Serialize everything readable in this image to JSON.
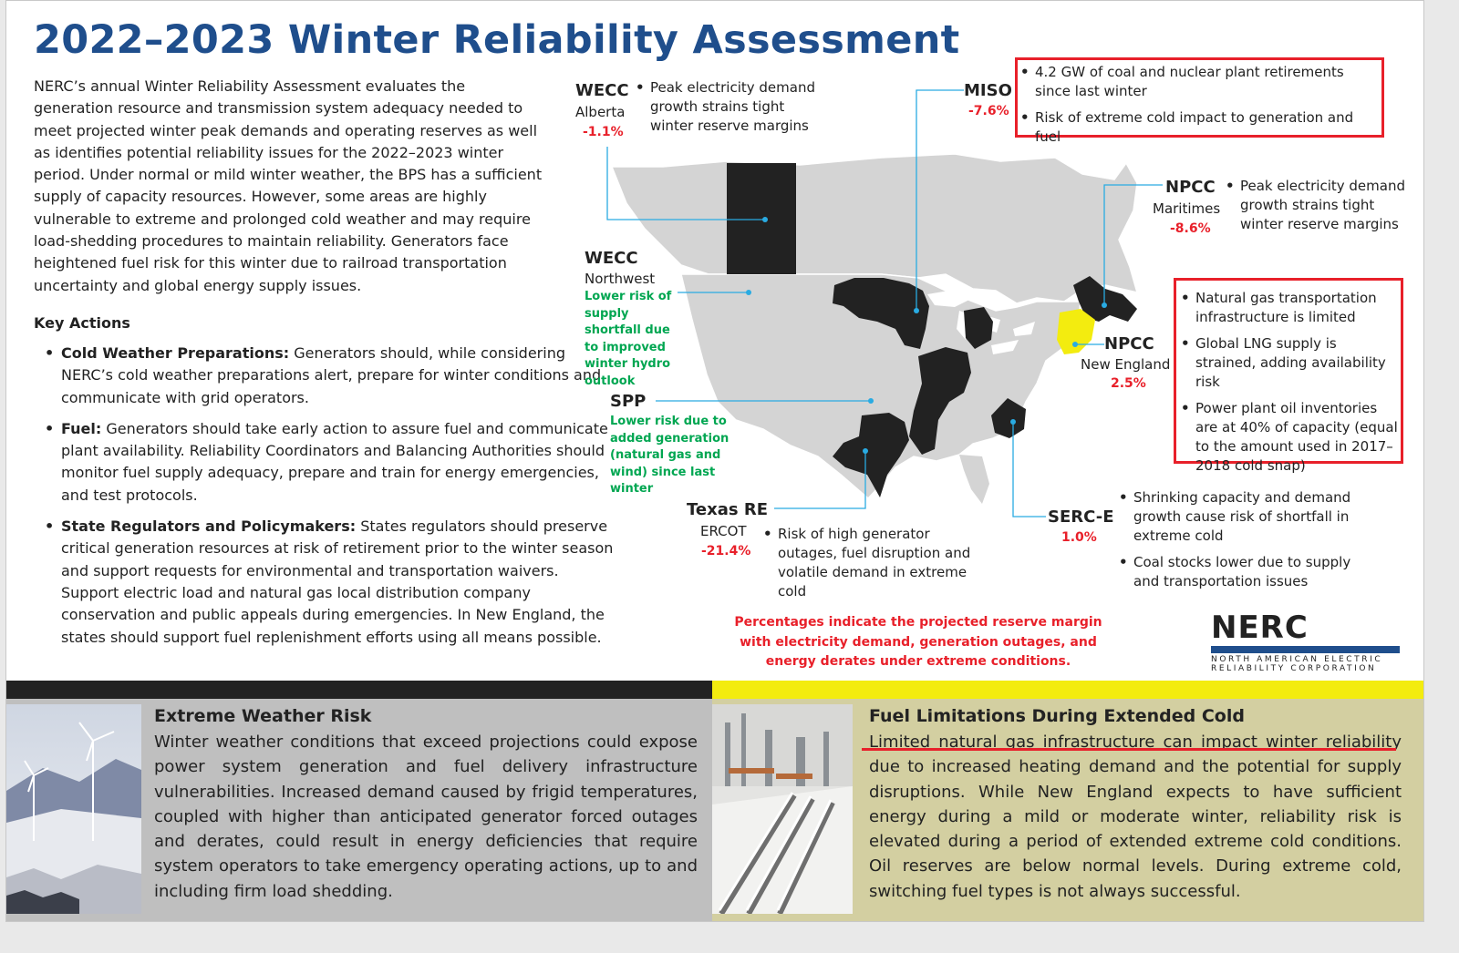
{
  "title": "2022–2023 Winter Reliability Assessment",
  "intro": "NERC’s annual Winter Reliability Assessment evaluates the generation resource and transmission system adequacy needed to meet projected winter peak demands and operating reserves as well as identifies potential reliability issues for the 2022–2023 winter period. Under normal or mild winter weather, the BPS has a sufficient supply of capacity resources. However, some areas are highly vulnerable to extreme and prolonged cold weather and may require load-shedding procedures to maintain reliability. Generators face heightened fuel risk for this winter due to railroad transportation uncertainty and global energy supply issues.",
  "key_actions": {
    "title": "Key Actions",
    "items": [
      {
        "heading": "Cold Weather Preparations:",
        "text": " Generators should, while considering NERC’s cold weather preparations alert, prepare for winter conditions and communicate with grid operators."
      },
      {
        "heading": "Fuel:",
        "text": " Generators should take early action to assure fuel and communicate plant availability. Reliability Coordinators and Balancing Authorities should monitor fuel supply adequacy, prepare and train for energy emergencies, and test protocols."
      },
      {
        "heading": "State Regulators and Policymakers:",
        "text": " States regulators should preserve critical generation resources at risk of retirement prior to the winter season and support requests for environmental and transportation waivers. Support electric load and natural gas local distribution company conservation and public appeals during emergencies. In New England, the states should support fuel replenishment efforts using all means possible."
      }
    ]
  },
  "regions": {
    "wecc_alberta": {
      "name": "WECC",
      "sub": "Alberta",
      "pct": "-1.1%",
      "notes": [
        "Peak electricity demand growth strains tight winter reserve margins"
      ]
    },
    "miso": {
      "name": "MISO",
      "pct": "-7.6%",
      "notes": [
        "4.2 GW of coal and nuclear plant retirements since last winter",
        "Risk of extreme cold impact to generation and fuel"
      ]
    },
    "npcc_maritimes": {
      "name": "NPCC",
      "sub": "Maritimes",
      "pct": "-8.6%",
      "notes": [
        "Peak electricity demand growth strains tight winter reserve margins"
      ]
    },
    "wecc_northwest": {
      "name": "WECC",
      "sub": "Northwest",
      "note": "Lower risk of supply shortfall due to improved winter hydro outlook"
    },
    "npcc_ne": {
      "name": "NPCC",
      "sub": "New England",
      "pct": "2.5%",
      "notes": [
        "Natural gas transportation infrastructure is limited",
        "Global LNG supply is strained, adding availability risk",
        "Power plant oil inventories are at 40% of capacity (equal to the amount used in 2017–2018 cold snap)"
      ]
    },
    "spp": {
      "name": "SPP",
      "note": "Lower risk due to added generation (natural gas and wind) since last winter"
    },
    "texas_re": {
      "name": "Texas RE",
      "sub": "ERCOT",
      "pct": "-21.4%",
      "notes": [
        "Risk of high generator outages, fuel disruption and volatile demand in extreme cold"
      ]
    },
    "serc_e": {
      "name": "SERC-E",
      "pct": "1.0%",
      "notes": [
        "Shrinking capacity and demand growth cause risk of shortfall in extreme cold",
        "Coal stocks lower due to supply and transportation issues"
      ]
    }
  },
  "footnote": "Percentages indicate the projected reserve margin with electricity demand, generation outages, and energy derates under extreme conditions.",
  "logo": {
    "word": "NERC",
    "line1": "NORTH AMERICAN ELECTRIC",
    "line2": "RELIABILITY CORPORATION"
  },
  "panels": {
    "left": {
      "title": "Extreme Weather Risk",
      "body": "Winter weather conditions that exceed projections could expose power system generation and fuel delivery infrastructure vulnerabilities. Increased demand caused by frigid temperatures, coupled with higher than anticipated generator forced outages and derates, could result in energy deficiencies that require system operators to take emergency operating actions, up to and including firm load shedding."
    },
    "right": {
      "title": "Fuel Limitations During Extended Cold",
      "lead": "Limited natural gas infrastructure can impact winter reliability",
      "body": " due to increased heating demand and the potential for supply disruptions. While New England expects to have sufficient energy during a mild or moderate winter, reliability risk is elevated during a period of extended extreme cold conditions. Oil reserves are below normal levels. During extreme cold, switching fuel types is not always successful."
    }
  },
  "colors": {
    "title": "#1f4e8c",
    "risk_red": "#e8202a",
    "low_risk_green": "#00a651",
    "elevated_region": "#222222",
    "new_england": "#f3ec0f",
    "map_land": "#d4d4d4"
  }
}
